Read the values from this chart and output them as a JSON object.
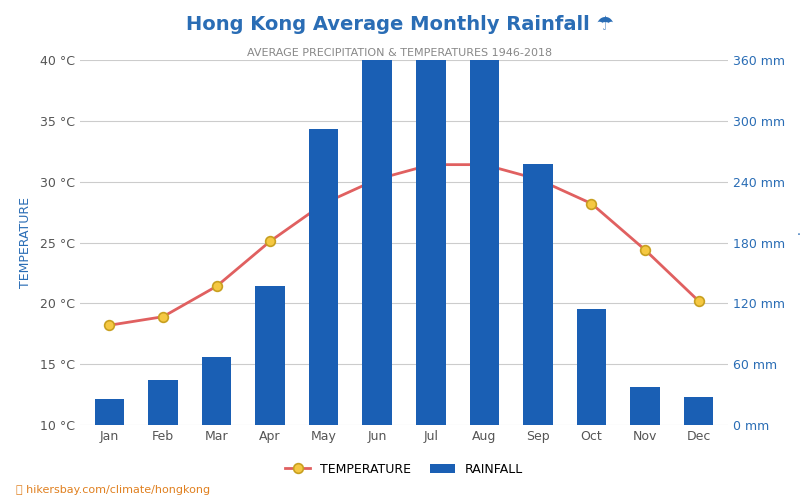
{
  "title": "Hong Kong Average Monthly Rainfall ☂",
  "subtitle": "AVERAGE PRECIPITATION & TEMPERATURES 1946-2018",
  "months": [
    "Jan",
    "Feb",
    "Mar",
    "Apr",
    "May",
    "Jun",
    "Jul",
    "Aug",
    "Sep",
    "Oct",
    "Nov",
    "Dec"
  ],
  "rainfall_mm": [
    26,
    44,
    67,
    137,
    292,
    394,
    381,
    391,
    257,
    114,
    37,
    28
  ],
  "temperature_c": [
    18.2,
    18.9,
    21.4,
    25.1,
    28.2,
    30.2,
    31.4,
    31.4,
    30.2,
    28.2,
    24.4,
    20.2
  ],
  "bar_color": "#1a5fb4",
  "line_color": "#e06060",
  "marker_face": "#f5c842",
  "marker_edge": "#c8a020",
  "ylabel_left": "TEMPERATURE",
  "ylabel_right": "Precipitation",
  "ylim_left": [
    10,
    40
  ],
  "ylim_right": [
    0,
    360
  ],
  "yticks_left": [
    10,
    15,
    20,
    25,
    30,
    35,
    40
  ],
  "yticks_right": [
    0,
    60,
    120,
    180,
    240,
    300,
    360
  ],
  "background_color": "#ffffff",
  "grid_color": "#cccccc",
  "watermark": "hikersbay.com/climate/hongkong",
  "title_color": "#2a6db5",
  "axis_label_color": "#2a6db5",
  "tick_color": "#555555"
}
